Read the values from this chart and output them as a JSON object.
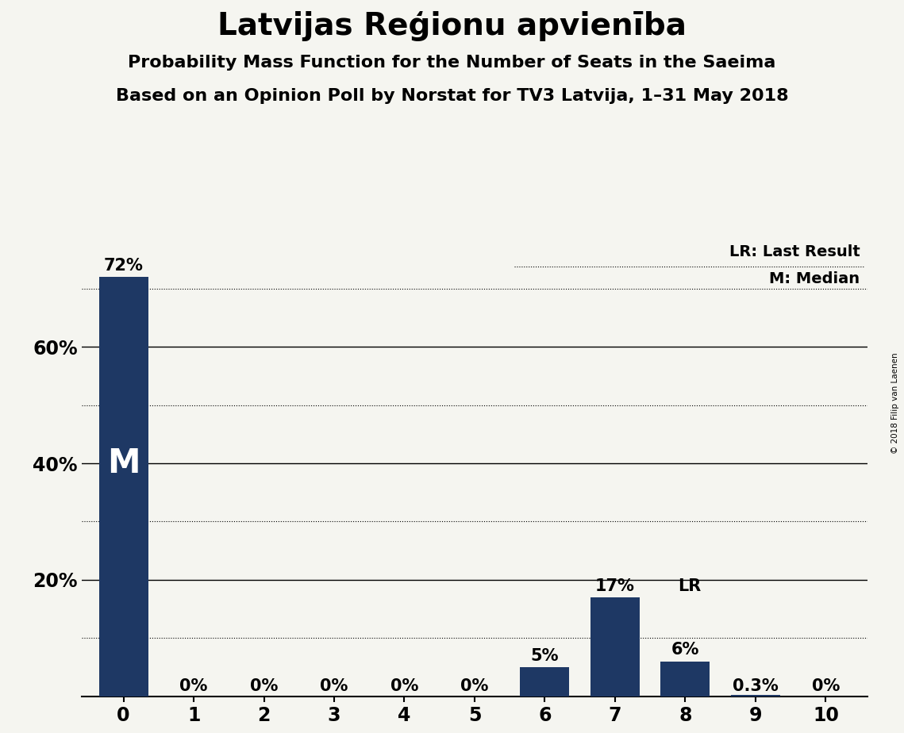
{
  "title": "Latvijas Reģionu apvienība",
  "subtitle1": "Probability Mass Function for the Number of Seats in the Saeima",
  "subtitle2": "Based on an Opinion Poll by Norstat for TV3 Latvija, 1–31 May 2018",
  "copyright": "© 2018 Filip van Laenen",
  "categories": [
    0,
    1,
    2,
    3,
    4,
    5,
    6,
    7,
    8,
    9,
    10
  ],
  "values": [
    0.72,
    0.0,
    0.0,
    0.0,
    0.0,
    0.0,
    0.05,
    0.17,
    0.06,
    0.003,
    0.0
  ],
  "bar_labels": [
    "72%",
    "0%",
    "0%",
    "0%",
    "0%",
    "0%",
    "5%",
    "17%",
    "6%",
    "0.3%",
    "0%"
  ],
  "bar_color": "#1e3864",
  "median_bar": 0,
  "median_label": "M",
  "lr_bar": 8,
  "lr_label": "LR",
  "legend_lr": "LR: Last Result",
  "legend_m": "M: Median",
  "ylim": [
    0,
    0.78
  ],
  "ytick_positions": [
    0.2,
    0.4,
    0.6
  ],
  "ytick_labels": [
    "20%",
    "40%",
    "60%"
  ],
  "solid_gridlines": [
    0.2,
    0.4,
    0.6
  ],
  "dotted_gridlines": [
    0.1,
    0.3,
    0.5,
    0.7
  ],
  "background_color": "#f5f5f0",
  "title_fontsize": 28,
  "subtitle_fontsize": 16,
  "bar_label_fontsize": 15,
  "axis_label_fontsize": 17,
  "legend_fontsize": 14
}
